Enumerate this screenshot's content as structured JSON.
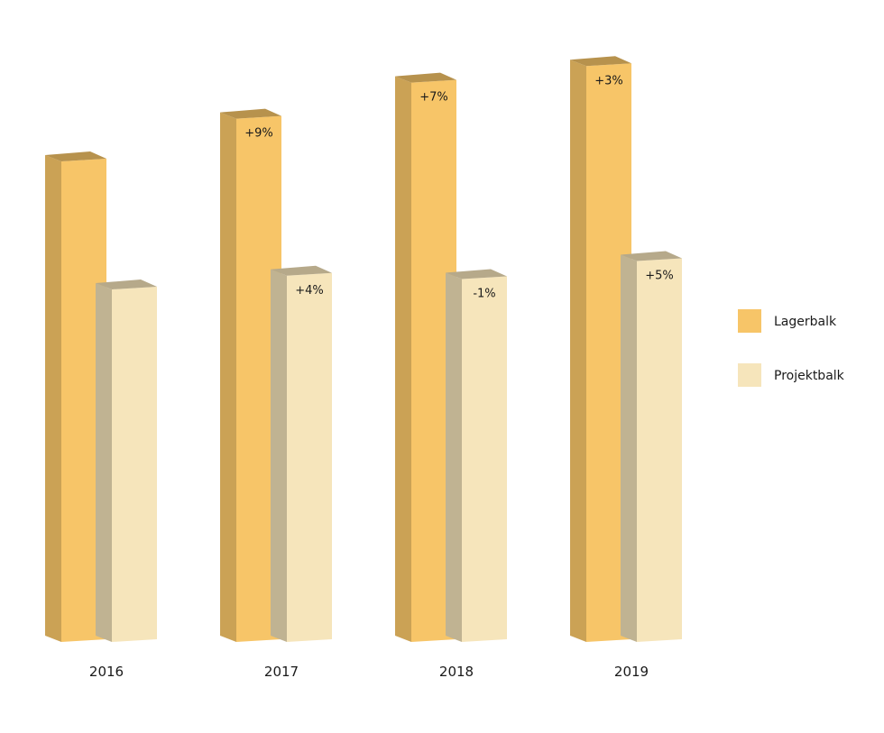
{
  "chart_data": {
    "type": "bar",
    "categories": [
      "2016",
      "2017",
      "2018",
      "2019"
    ],
    "series": [
      {
        "name": "Lagerbalk",
        "color": "#f7c568",
        "values": [
          100,
          109,
          116.6,
          120.1
        ],
        "labels": [
          "",
          "+9%",
          "+7%",
          "+3%"
        ]
      },
      {
        "name": "Projektbalk",
        "color": "#f6e5bb",
        "values": [
          73,
          75.9,
          75.2,
          79
        ],
        "labels": [
          "",
          "+4%",
          "-1%",
          "+5%"
        ]
      }
    ],
    "ylim": [
      0,
      135
    ],
    "grid": false,
    "legend_position": "right",
    "style": "3d-column"
  }
}
